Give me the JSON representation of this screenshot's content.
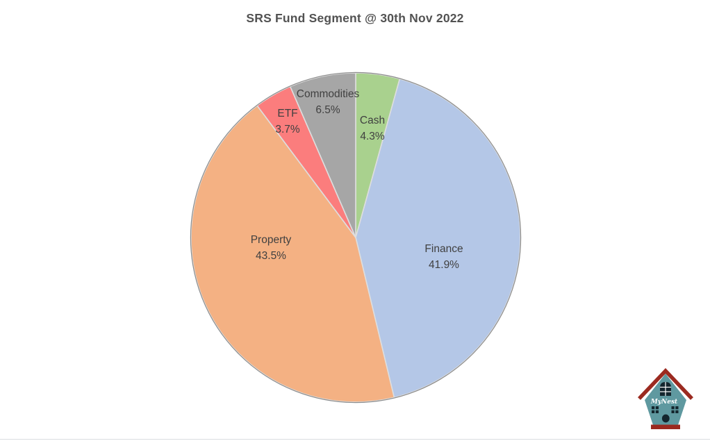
{
  "page": {
    "title": "SRS Fund Segment @ 30th Nov 2022"
  },
  "chart_data": {
    "type": "pie",
    "title": "SRS Fund Segment @ 30th Nov 2022",
    "unit": "percent",
    "direction": "clockwise",
    "start_angle_deg": 0,
    "legend": "none",
    "labels_on_slices": true,
    "slices": [
      {
        "label": "Cash",
        "value": 4.3,
        "display": "4.3%",
        "color": "#a9d18e"
      },
      {
        "label": "Finance",
        "value": 41.9,
        "display": "41.9%",
        "color": "#b4c7e7"
      },
      {
        "label": "Property",
        "value": 43.5,
        "display": "43.5%",
        "color": "#f4b183"
      },
      {
        "label": "ETF",
        "value": 3.7,
        "display": "3.7%",
        "color": "#fb7d7d"
      },
      {
        "label": "Commodities",
        "value": 6.5,
        "display": "6.5%",
        "color": "#a6a6a6"
      }
    ],
    "slice_border_color": "#dedede",
    "outline_color": "#8c8c8c",
    "label_color": "#404040",
    "title_color": "#525252"
  },
  "logo": {
    "text": "MyNest",
    "body_color": "#5f99a0",
    "roof_color": "#9b2a20",
    "window_color": "#14262e",
    "text_color": "#ffffff"
  }
}
